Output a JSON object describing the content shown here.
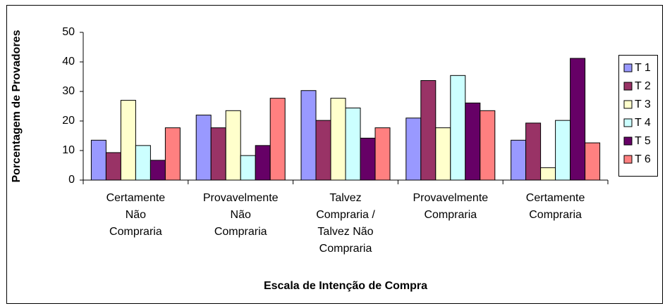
{
  "chart_data": {
    "type": "bar",
    "ylabel": "Porcentagem de Provadores",
    "xlabel": "Escala de Intenção de Compra",
    "categories": [
      [
        "Certamente",
        "Não",
        "Compraria"
      ],
      [
        "Provavelmente",
        "Não",
        "Compraria"
      ],
      [
        "Talvez",
        "Compraria /",
        "Talvez Não",
        "Compraria"
      ],
      [
        "Provavelmente",
        "Compraria"
      ],
      [
        "Certamente",
        "Compraria"
      ]
    ],
    "series": [
      {
        "name": "T 1",
        "color": "#9999ff",
        "values": [
          13.5,
          22,
          30.3,
          21,
          13.5
        ]
      },
      {
        "name": "T 2",
        "color": "#993366",
        "values": [
          9.3,
          17.7,
          20.2,
          33.7,
          19.3
        ]
      },
      {
        "name": "T 3",
        "color": "#ffffcc",
        "values": [
          27,
          23.5,
          27.7,
          17.7,
          4.2
        ]
      },
      {
        "name": "T 4",
        "color": "#ccffff",
        "values": [
          11.7,
          8.3,
          24.4,
          35.4,
          20.2
        ]
      },
      {
        "name": "T 5",
        "color": "#660066",
        "values": [
          6.7,
          11.7,
          14.2,
          26.1,
          41.2
        ]
      },
      {
        "name": "T 6",
        "color": "#ff8080",
        "values": [
          17.7,
          27.7,
          17.7,
          23.5,
          12.6
        ]
      }
    ],
    "ylim": [
      0,
      50
    ],
    "yticks": [
      0,
      10,
      20,
      30,
      40,
      50
    ],
    "grid": false,
    "legend": "right"
  }
}
